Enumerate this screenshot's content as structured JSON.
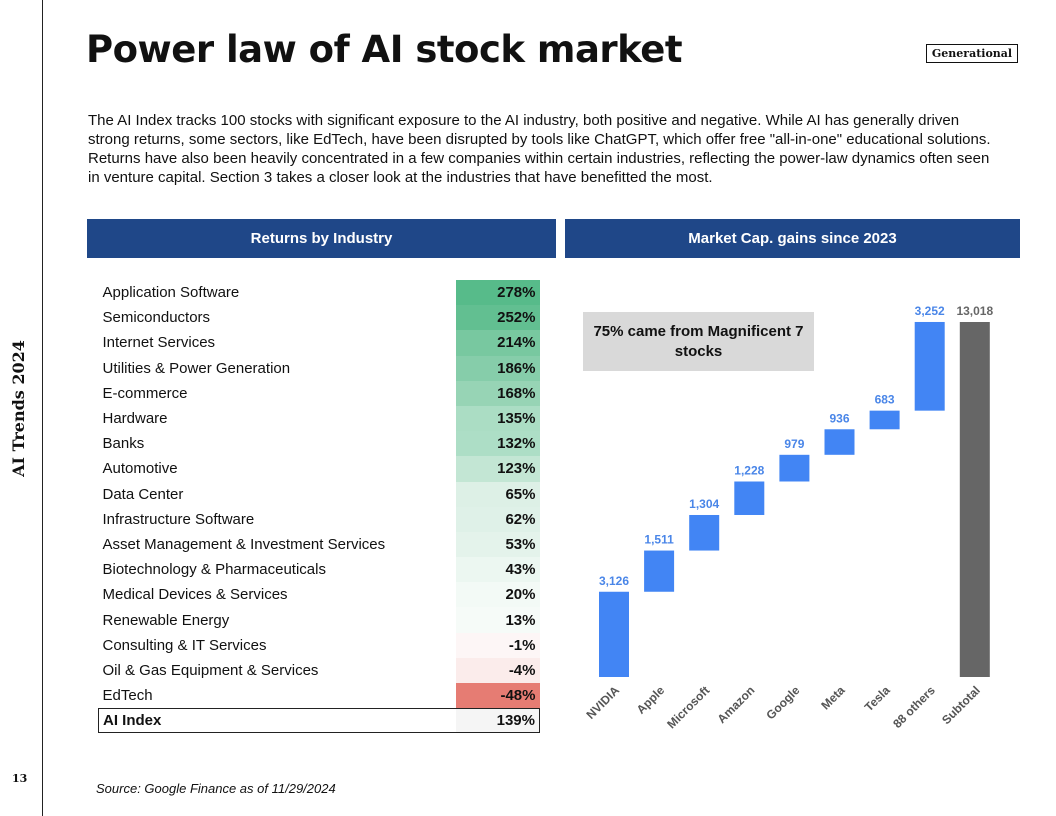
{
  "sidebar": {
    "label": "AI Trends 2024",
    "page_number": "13"
  },
  "header": {
    "title": "Power law of AI stock market",
    "badge": "Generational"
  },
  "intro": "The AI Index tracks 100 stocks with significant exposure to the AI industry, both positive and negative. While AI has generally driven strong returns, some sectors, like EdTech, have been disrupted by tools like ChatGPT, which offer free \"all-in-one\" educational solutions. Returns have also been heavily concentrated in a few companies within certain industries, reflecting the power-law dynamics often seen in venture capital. Section 3 takes a closer look at the industries that have benefitted the most.",
  "returns_panel": {
    "title": "Returns by Industry",
    "rows": [
      {
        "industry": "Application Software",
        "return": "278%",
        "color": "#57bb8a"
      },
      {
        "industry": "Semiconductors",
        "return": "252%",
        "color": "#62bf91"
      },
      {
        "industry": "Internet Services",
        "return": "214%",
        "color": "#78c8a0"
      },
      {
        "industry": "Utilities & Power Generation",
        "return": "186%",
        "color": "#86cdaa"
      },
      {
        "industry": "E-commerce",
        "return": "168%",
        "color": "#97d4b5"
      },
      {
        "industry": "Hardware",
        "return": "135%",
        "color": "#abddc4"
      },
      {
        "industry": "Banks",
        "return": "132%",
        "color": "#addec6"
      },
      {
        "industry": "Automotive",
        "return": "123%",
        "color": "#c3e6d4"
      },
      {
        "industry": "Data Center",
        "return": "65%",
        "color": "#ddf0e6"
      },
      {
        "industry": "Infrastructure Software",
        "return": "62%",
        "color": "#dff1e8"
      },
      {
        "industry": "Asset Management & Investment Services",
        "return": "53%",
        "color": "#e4f3eb"
      },
      {
        "industry": "Biotechnology & Pharmaceuticals",
        "return": "43%",
        "color": "#ecf7f1"
      },
      {
        "industry": "Medical Devices & Services",
        "return": "20%",
        "color": "#f3faf6"
      },
      {
        "industry": "Renewable Energy",
        "return": "13%",
        "color": "#f6fbf8"
      },
      {
        "industry": "Consulting & IT Services",
        "return": "-1%",
        "color": "#fdf6f6"
      },
      {
        "industry": "Oil & Gas Equipment & Services",
        "return": "-4%",
        "color": "#fbeceb"
      },
      {
        "industry": "EdTech",
        "return": "-48%",
        "color": "#e67c73"
      }
    ],
    "total": {
      "industry": "AI Index",
      "return": "139%"
    }
  },
  "market_panel": {
    "title": "Market Cap. gains since 2023",
    "callout": "75% came from Magnificent 7 stocks"
  },
  "chart_data": {
    "type": "bar",
    "subtype": "waterfall",
    "categories": [
      "NVIDIA",
      "Apple",
      "Microsoft",
      "Amazon",
      "Google",
      "Meta",
      "Tesla",
      "88 others",
      "Subtotal"
    ],
    "values": [
      3126,
      1511,
      1304,
      1228,
      979,
      936,
      683,
      3252,
      13018
    ],
    "labels": [
      "3,126",
      "1,511",
      "1,304",
      "1,228",
      "979",
      "936",
      "683",
      "3,252",
      "13,018"
    ],
    "is_total": [
      false,
      false,
      false,
      false,
      false,
      false,
      false,
      false,
      true
    ],
    "colors": {
      "increase": "#4285f4",
      "total": "#666666",
      "increase_label": "#4a86e8",
      "total_label": "#666666"
    },
    "ylim": [
      0,
      13018
    ],
    "xlabel": "",
    "ylabel": "",
    "grid": false,
    "legend": "none",
    "x_tick_rotation": -45
  },
  "footer": {
    "source": "Source: Google Finance as of 11/29/2024"
  }
}
